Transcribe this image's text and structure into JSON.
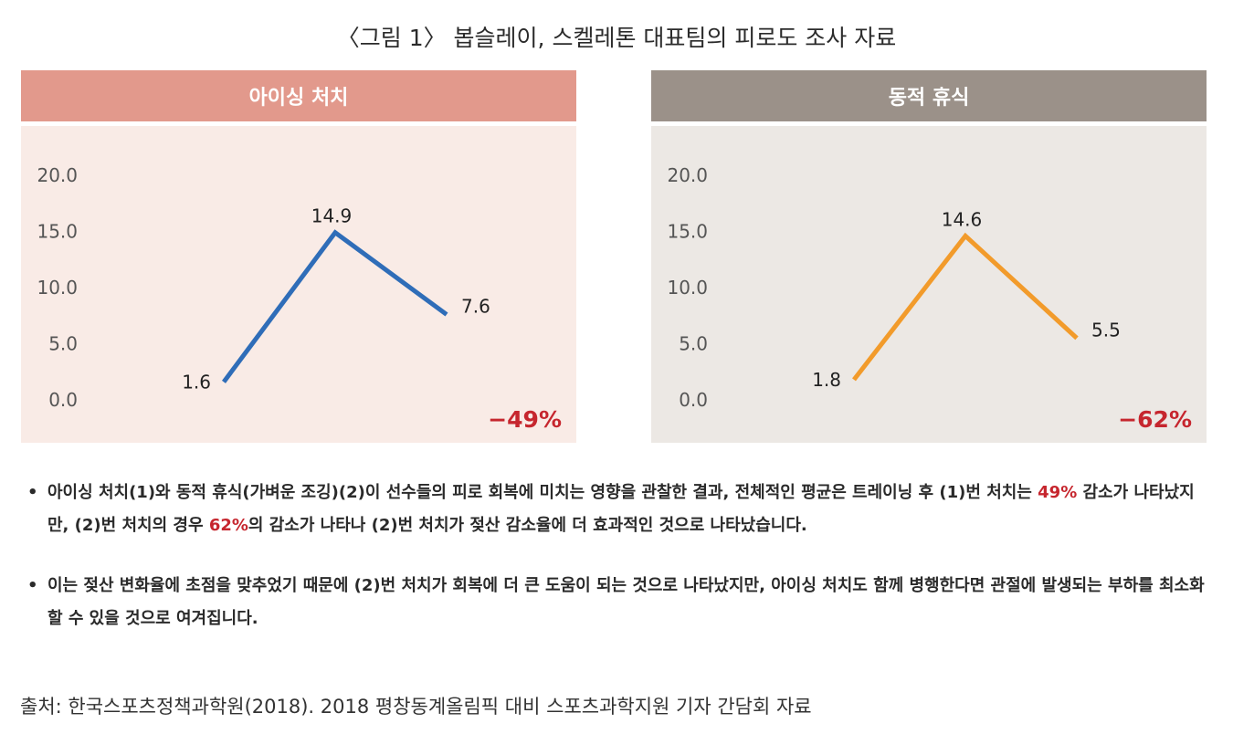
{
  "title": "〈그림 1〉 봅슬레이, 스켈레톤 대표팀의 피로도 조사 자료",
  "colors": {
    "left_header": "#e2998c",
    "left_bg": "#f9ebe6",
    "left_line": "#2f6db8",
    "right_header": "#9b9189",
    "right_bg": "#ece8e4",
    "right_line": "#f29b2b",
    "accent_red": "#c6262e"
  },
  "chart_data": [
    {
      "type": "line",
      "title": "아이싱 처치",
      "yticks": [
        "20.0",
        "15.0",
        "10.0",
        "5.0",
        "0.0"
      ],
      "ylim": [
        0,
        20
      ],
      "x": [
        1,
        2,
        3
      ],
      "values": [
        1.6,
        14.9,
        7.6
      ],
      "value_labels": [
        "1.6",
        "14.9",
        "7.6"
      ],
      "annotation": "−49%",
      "grid": false
    },
    {
      "type": "line",
      "title": "동적 휴식",
      "yticks": [
        "20.0",
        "15.0",
        "10.0",
        "5.0",
        "0.0"
      ],
      "ylim": [
        0,
        20
      ],
      "x": [
        1,
        2,
        3
      ],
      "values": [
        1.8,
        14.6,
        5.5
      ],
      "value_labels": [
        "1.8",
        "14.6",
        "5.5"
      ],
      "annotation": "−62%",
      "grid": false
    }
  ],
  "bullets": [
    {
      "marker": "•",
      "parts": [
        "아이싱 처치(1)와 동적 휴식(가벼운 조깅)(2)이 선수들의 피로 회복에 미치는 영향을 관찰한 결과, 전체적인 평균은 트레이닝 후 (1)번 처치는 ",
        "49%",
        " 감소가 나타났지만, (2)번 처치의 경우 ",
        "62%",
        "의 감소가 나타나 (2)번 처치가 젖산 감소율에 더 효과적인 것으로 나타났습니다."
      ]
    },
    {
      "marker": "•",
      "text": "이는 젖산 변화율에 초점을 맞추었기 때문에 (2)번 처치가 회복에 더 큰 도움이 되는 것으로 나타났지만, 아이싱 처치도 함께 병행한다면 관절에 발생되는 부하를 최소화할 수 있을 것으로 여겨집니다."
    }
  ],
  "source": "출처: 한국스포츠정책과학원(2018). 2018 평창동계올림픽 대비 스포츠과학지원 기자 간담회 자료"
}
